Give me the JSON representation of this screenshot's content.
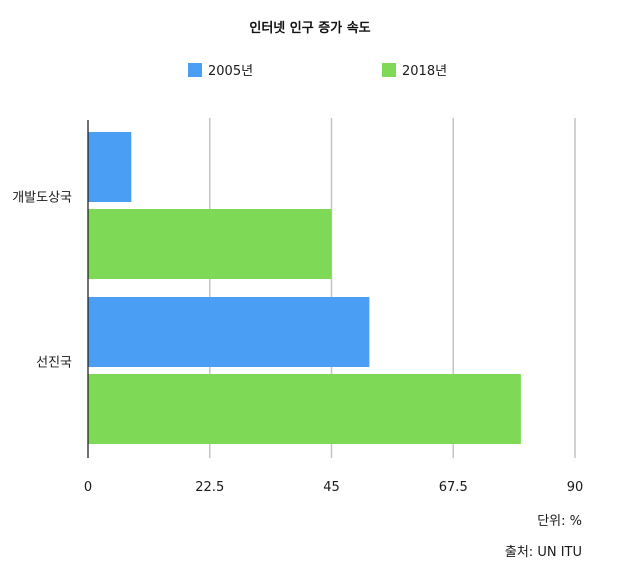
{
  "chart_data": {
    "type": "bar",
    "orientation": "horizontal",
    "title": "인터넷 인구 증가 속도",
    "categories": [
      "개발도상국",
      "선진국"
    ],
    "series": [
      {
        "name": "2005년",
        "color": "#4a9ff5",
        "values": [
          8,
          52
        ]
      },
      {
        "name": "2018년",
        "color": "#7ed957",
        "values": [
          45,
          80
        ]
      }
    ],
    "xlim": [
      0,
      90
    ],
    "xticks": [
      "0",
      "22.5",
      "45",
      "67.5",
      "90"
    ],
    "grid": true,
    "legend_position": "top"
  },
  "notes": {
    "unit": "단위: %",
    "source": "출처: UN ITU"
  }
}
